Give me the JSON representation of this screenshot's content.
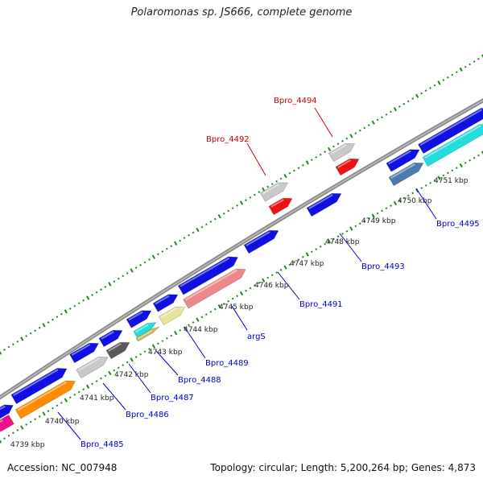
{
  "title": "Polaromonas sp. JS666, complete genome",
  "footer": {
    "accession": "Accession: NC_007948",
    "topology": "Topology: circular; Length: 5,200,264 bp; Genes: 4,873"
  },
  "ruler": {
    "unit_label": "kbp",
    "ticks": [
      {
        "kbp": 4739,
        "label": "4739 kbp"
      },
      {
        "kbp": 4740,
        "label": "4740 kbp"
      },
      {
        "kbp": 4741,
        "label": "4741 kbp"
      },
      {
        "kbp": 4742,
        "label": "4742 kbp"
      },
      {
        "kbp": 4743,
        "label": "4743 kbp"
      },
      {
        "kbp": 4744,
        "label": "4744 kbp"
      },
      {
        "kbp": 4745,
        "label": "4745 kbp"
      },
      {
        "kbp": 4746,
        "label": "4746 kbp"
      },
      {
        "kbp": 4747,
        "label": "4747 kbp"
      },
      {
        "kbp": 4748,
        "label": "4748 kbp"
      },
      {
        "kbp": 4749,
        "label": "4749 kbp"
      },
      {
        "kbp": 4750,
        "label": "4750 kbp"
      },
      {
        "kbp": 4751,
        "label": "4751 kbp"
      }
    ]
  },
  "colors": {
    "backbone": "#8a8a8a",
    "ruler_dots": "#1a8a1a",
    "label_blue": "#0000cc",
    "label_red": "#cc0000",
    "blue": "#1010e0",
    "gray_light": "#c8c8c8",
    "gray_dark": "#5a5a5a",
    "red": "#ee1111",
    "cyan": "#22dddd",
    "pink": "#ee8888",
    "khaki": "#e8e4a0",
    "olive": "#c8b860",
    "orange": "#ff8c00",
    "magenta": "#ee1188",
    "steel": "#4a7ab0"
  },
  "labels": [
    {
      "text": "Bpro_4485",
      "color": "blue"
    },
    {
      "text": "Bpro_4486",
      "color": "blue"
    },
    {
      "text": "Bpro_4487",
      "color": "blue"
    },
    {
      "text": "Bpro_4488",
      "color": "blue"
    },
    {
      "text": "Bpro_4489",
      "color": "blue"
    },
    {
      "text": "argS",
      "color": "blue"
    },
    {
      "text": "Bpro_4491",
      "color": "blue"
    },
    {
      "text": "Bpro_4493",
      "color": "blue"
    },
    {
      "text": "Bpro_4495",
      "color": "blue"
    },
    {
      "text": "Bpro_4492",
      "color": "red"
    },
    {
      "text": "Bpro_4494",
      "color": "red"
    }
  ]
}
